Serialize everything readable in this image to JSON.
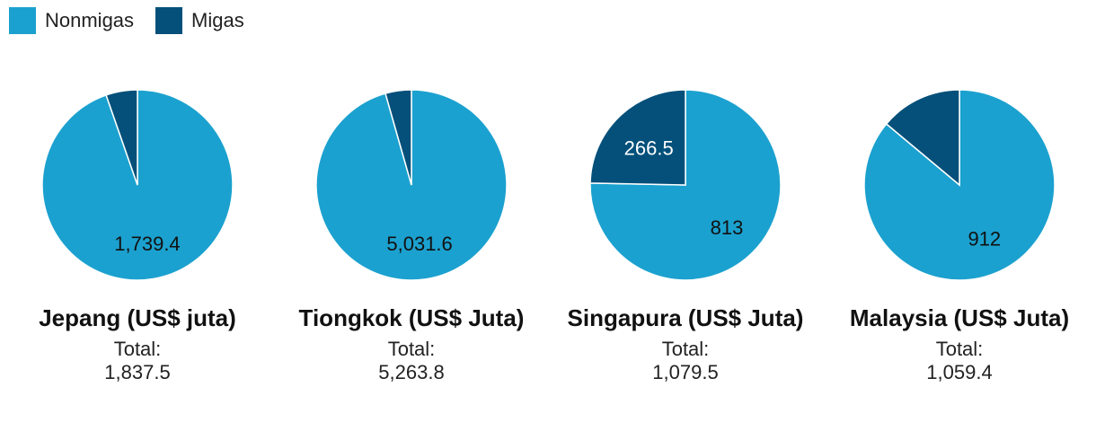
{
  "legend": [
    {
      "label": "Nonmigas",
      "color": "#1ba1cf"
    },
    {
      "label": "Migas",
      "color": "#04507a"
    }
  ],
  "chart_data": [
    {
      "type": "pie",
      "title": "Jepang (US$ juta)",
      "total_label": "Total:",
      "total_value": "1,837.5",
      "slices": [
        {
          "name": "Nonmigas",
          "value": 1739.4,
          "label": "1,739.4",
          "color": "#1ba1cf"
        },
        {
          "name": "Migas",
          "value": 98.1,
          "label": "",
          "color": "#04507a"
        }
      ]
    },
    {
      "type": "pie",
      "title": "Tiongkok (US$ Juta)",
      "total_label": "Total:",
      "total_value": "5,263.8",
      "slices": [
        {
          "name": "Nonmigas",
          "value": 5031.6,
          "label": "5,031.6",
          "color": "#1ba1cf"
        },
        {
          "name": "Migas",
          "value": 232.2,
          "label": "",
          "color": "#04507a"
        }
      ]
    },
    {
      "type": "pie",
      "title": "Singapura (US$ Juta)",
      "total_label": "Total:",
      "total_value": "1,079.5",
      "slices": [
        {
          "name": "Nonmigas",
          "value": 813,
          "label": "813",
          "color": "#1ba1cf"
        },
        {
          "name": "Migas",
          "value": 266.5,
          "label": "266.5",
          "color": "#04507a"
        }
      ]
    },
    {
      "type": "pie",
      "title": "Malaysia (US$ Juta)",
      "total_label": "Total:",
      "total_value": "1,059.4",
      "slices": [
        {
          "name": "Nonmigas",
          "value": 912,
          "label": "912",
          "color": "#1ba1cf"
        },
        {
          "name": "Migas",
          "value": 147.4,
          "label": "",
          "color": "#04507a"
        }
      ]
    }
  ]
}
